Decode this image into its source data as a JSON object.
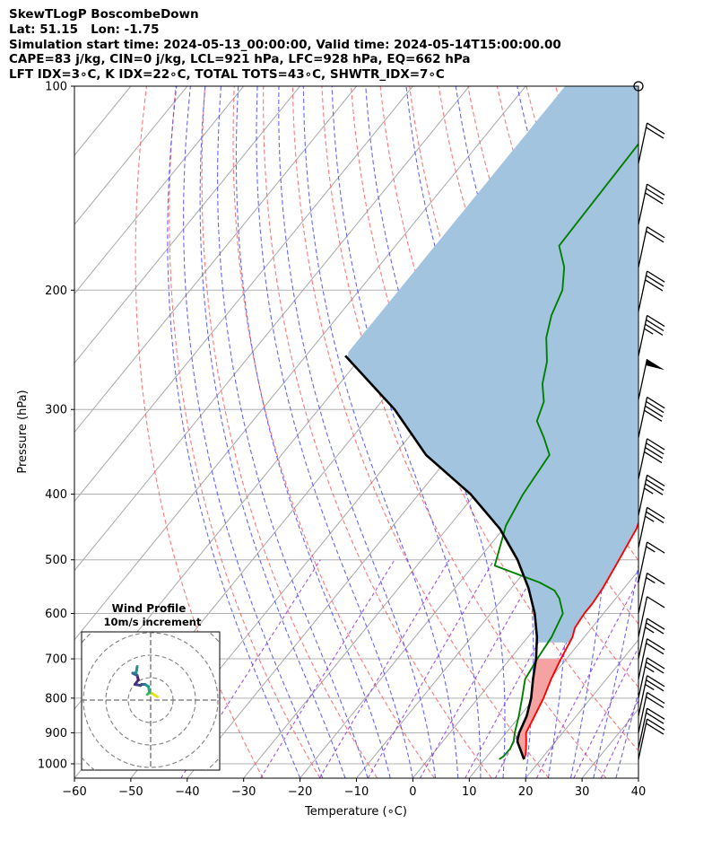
{
  "header": {
    "line1": "SkewTLogP BoscombeDown",
    "line2": "Lat: 51.15   Lon: -1.75",
    "line3": "Simulation start time: 2024-05-13_00:00:00, Valid time: 2024-05-14T15:00:00.00",
    "line4": "CAPE=83 j/kg, CIN=0 j/kg, LCL=921 hPa, LFC=928 hPa, EQ=662 hPa",
    "line5": "LFT IDX=3∘C, K IDX=22∘C, TOTAL TOTS=43∘C, SHWTR_IDX=7∘C"
  },
  "chart_data": [
    {
      "type": "line",
      "kind": "skew-T log-P",
      "xlabel": "Temperature (∘C)",
      "ylabel": "Pressure (hPa)",
      "xlim": [
        -60,
        40
      ],
      "ylim": [
        1050,
        100
      ],
      "y_scale": "log",
      "grid": true,
      "x_ticks": [
        "−60",
        "−50",
        "−40",
        "−30",
        "−20",
        "−10",
        "0",
        "10",
        "20",
        "30",
        "40"
      ],
      "y_ticks": [
        "100",
        "200",
        "300",
        "400",
        "500",
        "600",
        "700",
        "800",
        "900",
        "1000"
      ],
      "series": [
        {
          "role": "temperature",
          "color": "#ff0000",
          "x": [
            17.0,
            16.6,
            15.8,
            14.7,
            13.5,
            12.6,
            11.6,
            10.2,
            9.0,
            7.9,
            7.0,
            6.6,
            6.6,
            6.2,
            5.0,
            3.6,
            0.8,
            -2.0,
            -3.0,
            -4.3,
            -8.5,
            -10.0,
            -11.0,
            -13.8,
            -17.0,
            -16.3,
            -17.3,
            -19.3,
            -24.0,
            -30.0,
            -38.8
          ],
          "y": [
            985,
            970,
            950,
            925,
            900,
            850,
            800,
            750,
            700,
            650,
            630,
            600,
            580,
            550,
            500,
            450,
            400,
            350,
            325,
            300,
            275,
            258,
            250,
            232,
            215,
            203,
            185,
            172,
            155,
            130,
            100
          ]
        },
        {
          "role": "dewpoint",
          "color": "#008000",
          "x": [
            12.6,
            12.9,
            13.0,
            12.5,
            11.5,
            9.8,
            7.8,
            5.6,
            4.8,
            4.2,
            2.8,
            0.0,
            -2.0,
            -5.8,
            -16.2,
            -20.0,
            -21.5,
            -22.5,
            -26.0,
            -29.6,
            -31.2,
            -34.0,
            -36.4,
            -40.0,
            -42.3,
            -44.0,
            -47.0,
            -51.0,
            -52.0
          ],
          "y": [
            985,
            975,
            950,
            925,
            900,
            850,
            800,
            750,
            700,
            650,
            600,
            570,
            555,
            540,
            510,
            445,
            400,
            350,
            330,
            312,
            292,
            275,
            255,
            235,
            218,
            200,
            185,
            172,
            100
          ]
        },
        {
          "role": "parcel path",
          "color": "#000000",
          "x": [
            17.0,
            13.3,
            13.0,
            12.3,
            11.2,
            9.4,
            7.0,
            4.6,
            1.6,
            -2.2,
            -7.0,
            -13.0,
            -20.6,
            -30.8,
            -44.4,
            -56.5,
            -73.0
          ],
          "y": [
            985,
            928,
            921,
            900,
            850,
            800,
            750,
            700,
            650,
            600,
            550,
            500,
            450,
            400,
            350,
            300,
            250
          ]
        }
      ],
      "shaded_regions": [
        {
          "role": "CAPE",
          "color": "#a2c4de",
          "between": "parcel path and temperature",
          "p_range": [
            662,
            100
          ]
        },
        {
          "role": "CIN",
          "color": "#f4a2a2",
          "between": "parcel path and temperature",
          "p_range": [
            985,
            700
          ]
        }
      ],
      "background_lines": [
        "isotherms (grey)",
        "dry adiabats (red dashed)",
        "moist adiabats (blue dashed)",
        "mixing ratio lines (purple dashed)"
      ],
      "wind_barbs": {
        "p": [
          100,
          130,
          160,
          185,
          215,
          250,
          290,
          330,
          380,
          430,
          480,
          540,
          600,
          650,
          700,
          750,
          800,
          850,
          900,
          950,
          985
        ],
        "speed": [
          0,
          20,
          30,
          20,
          30,
          35,
          50,
          40,
          40,
          35,
          25,
          15,
          15,
          10,
          25,
          20,
          25,
          25,
          20,
          20,
          20
        ]
      }
    },
    {
      "type": "line",
      "kind": "hodograph",
      "title": "Wind Profile",
      "subtitle": "10m/s increment",
      "u": [
        3.0,
        0.5,
        -1.0,
        -1.5,
        -0.5,
        -1.0,
        -2.5,
        -3.0,
        -4.0,
        -4.5,
        -7.0,
        -5.5,
        -6.0,
        -8.0,
        -6.5,
        -6.0
      ],
      "v": [
        1.5,
        3.0,
        3.0,
        2.5,
        3.5,
        6.0,
        7.0,
        7.0,
        7.0,
        6.5,
        7.0,
        9.0,
        11.0,
        12.0,
        12.0,
        15.0
      ]
    }
  ]
}
